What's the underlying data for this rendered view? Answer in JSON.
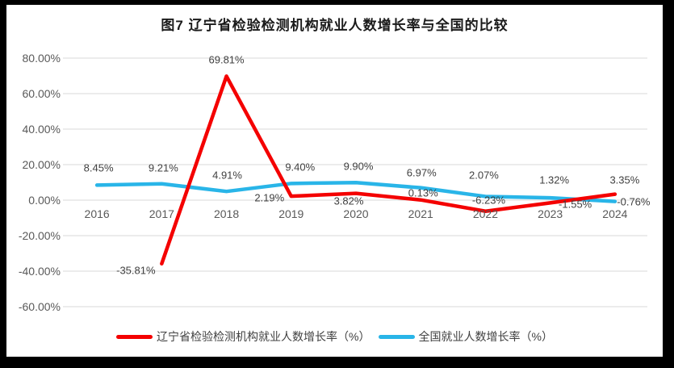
{
  "chart_data": {
    "type": "line",
    "title": "图7 辽宁省检验检测机构就业人数增长率与全国的比较",
    "categories": [
      "2016",
      "2017",
      "2018",
      "2019",
      "2020",
      "2021",
      "2022",
      "2023",
      "2024"
    ],
    "series": [
      {
        "name": "辽宁省检验检测机构就业人数增长率（%）",
        "color": "#f40000",
        "values": [
          null,
          -35.81,
          69.81,
          2.19,
          3.82,
          0.13,
          -6.23,
          -1.55,
          3.35
        ],
        "labels": [
          "",
          "-35.81%",
          "69.81%",
          "2.19%",
          "3.82%",
          "0.13%",
          "-6.23%",
          "-1.55%",
          "3.35%"
        ],
        "label_offsets": [
          null,
          [
            -32,
            8
          ],
          [
            0,
            -20
          ],
          [
            -27,
            2
          ],
          [
            -9,
            9
          ],
          [
            3,
            -9
          ],
          [
            4,
            -14
          ],
          [
            31,
            2
          ],
          [
            12,
            -18
          ]
        ]
      },
      {
        "name": "全国就业人数增长率（%）",
        "color": "#29b5e8",
        "values": [
          8.45,
          9.21,
          4.91,
          9.4,
          9.9,
          6.97,
          2.07,
          1.32,
          -0.76
        ],
        "labels": [
          "8.45%",
          "9.21%",
          "4.91%",
          "9.40%",
          "9.90%",
          "6.97%",
          "2.07%",
          "1.32%",
          "-0.76%"
        ],
        "label_offsets": [
          [
            2,
            -21
          ],
          [
            2,
            -20
          ],
          [
            1,
            -20
          ],
          [
            11,
            -20
          ],
          [
            3,
            -20
          ],
          [
            1,
            -19
          ],
          [
            -2,
            -26
          ],
          [
            5,
            -22
          ],
          [
            23,
            0
          ]
        ]
      }
    ],
    "y_axis": {
      "ticks": [
        {
          "label": "80.00%",
          "value": 80
        },
        {
          "label": "60.00%",
          "value": 60
        },
        {
          "label": "40.00%",
          "value": 40
        },
        {
          "label": "20.00%",
          "value": 20
        },
        {
          "label": "0.00%",
          "value": 0
        },
        {
          "label": "-20.00%",
          "value": -20
        },
        {
          "label": "-40.00%",
          "value": -40
        },
        {
          "label": "-60.00%",
          "value": -60
        }
      ]
    },
    "xlabel": "",
    "ylabel": "",
    "ylim": [
      -60,
      80
    ],
    "grid": true,
    "legend_position": "bottom",
    "colors": {
      "grid_line": "#d9d9d9",
      "axis_label": "#595959",
      "data_label": "#404040",
      "title": "#1a1a1a",
      "frame_border": "#000000",
      "background": "#ffffff"
    }
  }
}
